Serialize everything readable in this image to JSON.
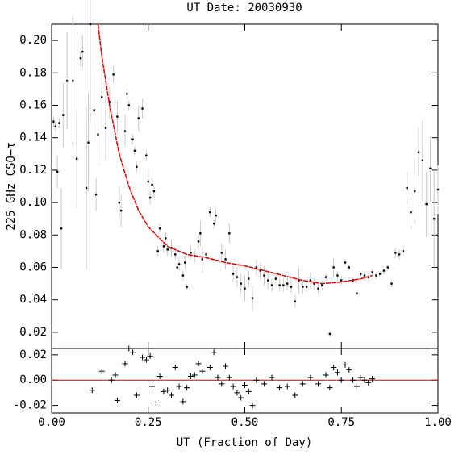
{
  "chart_data": [
    {
      "type": "scatter",
      "title": "UT Date: 20030930",
      "ylabel": "225 GHz CSO−τ",
      "x": [
        0.005,
        0.01,
        0.015,
        0.02,
        0.025,
        0.03,
        0.04,
        0.055,
        0.065,
        0.075,
        0.08,
        0.09,
        0.095,
        0.1,
        0.11,
        0.115,
        0.12,
        0.13,
        0.14,
        0.15,
        0.16,
        0.17,
        0.175,
        0.18,
        0.19,
        0.195,
        0.2,
        0.21,
        0.215,
        0.22,
        0.225,
        0.235,
        0.245,
        0.25,
        0.255,
        0.26,
        0.265,
        0.275,
        0.28,
        0.29,
        0.295,
        0.3,
        0.31,
        0.32,
        0.325,
        0.33,
        0.34,
        0.345,
        0.35,
        0.36,
        0.37,
        0.38,
        0.385,
        0.39,
        0.4,
        0.41,
        0.42,
        0.425,
        0.44,
        0.45,
        0.46,
        0.47,
        0.48,
        0.49,
        0.5,
        0.51,
        0.52,
        0.53,
        0.54,
        0.55,
        0.56,
        0.57,
        0.58,
        0.59,
        0.6,
        0.61,
        0.62,
        0.63,
        0.64,
        0.65,
        0.66,
        0.67,
        0.68,
        0.69,
        0.7,
        0.71,
        0.72,
        0.73,
        0.74,
        0.75,
        0.76,
        0.77,
        0.78,
        0.79,
        0.8,
        0.81,
        0.82,
        0.83,
        0.84,
        0.85,
        0.86,
        0.87,
        0.88,
        0.89,
        0.9,
        0.91,
        0.92,
        0.93,
        0.94,
        0.95,
        0.96,
        0.97,
        0.98,
        0.99,
        1.0
      ],
      "values": [
        0.15,
        0.147,
        0.119,
        0.149,
        0.084,
        0.154,
        0.175,
        0.175,
        0.127,
        0.189,
        0.193,
        0.109,
        0.137,
        0.21,
        0.157,
        0.105,
        0.142,
        0.165,
        0.146,
        0.162,
        0.179,
        0.153,
        0.1,
        0.095,
        0.144,
        0.167,
        0.16,
        0.139,
        0.132,
        0.122,
        0.152,
        0.158,
        0.129,
        0.113,
        0.103,
        0.111,
        0.107,
        0.07,
        0.084,
        0.073,
        0.078,
        0.071,
        0.072,
        0.068,
        0.06,
        0.062,
        0.055,
        0.063,
        0.048,
        0.069,
        0.067,
        0.076,
        0.081,
        0.065,
        0.068,
        0.094,
        0.087,
        0.092,
        0.069,
        0.065,
        0.081,
        0.056,
        0.054,
        0.05,
        0.047,
        0.053,
        0.041,
        0.06,
        0.058,
        0.055,
        0.052,
        0.049,
        0.053,
        0.049,
        0.049,
        0.05,
        0.048,
        0.039,
        0.052,
        0.048,
        0.048,
        0.052,
        0.05,
        0.047,
        0.049,
        0.054,
        0.019,
        0.06,
        0.055,
        0.052,
        0.063,
        0.06,
        0.052,
        0.044,
        0.056,
        0.055,
        0.054,
        0.057,
        0.055,
        0.056,
        0.058,
        0.06,
        0.05,
        0.069,
        0.068,
        0.07,
        0.109,
        0.094,
        0.107,
        0.131,
        0.126,
        0.099,
        0.121,
        0.09,
        0.108
      ],
      "errors": [
        0.003,
        0.003,
        0.01,
        0.003,
        0.025,
        0.02,
        0.03,
        0.04,
        0.03,
        0.005,
        0.01,
        0.05,
        0.03,
        0.06,
        0.02,
        0.01,
        0.02,
        0.02,
        0.02,
        0.01,
        0.005,
        0.01,
        0.01,
        0.01,
        0.01,
        0.003,
        0.003,
        0.003,
        0.003,
        0.003,
        0.008,
        0.006,
        0.003,
        0.008,
        0.004,
        0.004,
        0.004,
        0.003,
        0.003,
        0.004,
        0.004,
        0.004,
        0.005,
        0.003,
        0.006,
        0.004,
        0.003,
        0.004,
        0.002,
        0.004,
        0.004,
        0.005,
        0.008,
        0.008,
        0.004,
        0.003,
        0.003,
        0.004,
        0.006,
        0.006,
        0.006,
        0.005,
        0.006,
        0.006,
        0.008,
        0.005,
        0.008,
        0.005,
        0.005,
        0.006,
        0.006,
        0.004,
        0.004,
        0.004,
        0.004,
        0.004,
        0.004,
        0.004,
        0.008,
        0.004,
        0.003,
        0.005,
        0.004,
        0.003,
        0.003,
        0.002,
        0.002,
        0.006,
        0.003,
        0.003,
        0.002,
        0.002,
        0.002,
        0.002,
        0.002,
        0.003,
        0.002,
        0.002,
        0.002,
        0.002,
        0.002,
        0.002,
        0.002,
        0.003,
        0.003,
        0.003,
        0.01,
        0.01,
        0.02,
        0.015,
        0.025,
        0.02,
        0.02,
        0.03,
        0.015
      ],
      "color": "#000000",
      "error_color": "#c8c8c8",
      "fit": {
        "color": "#e00000",
        "x": [
          0.12,
          0.13,
          0.15,
          0.175,
          0.2,
          0.225,
          0.25,
          0.3,
          0.35,
          0.4,
          0.45,
          0.5,
          0.55,
          0.6,
          0.65,
          0.7,
          0.75,
          0.8,
          0.83
        ],
        "values": [
          0.21,
          0.19,
          0.16,
          0.13,
          0.11,
          0.095,
          0.085,
          0.073,
          0.068,
          0.066,
          0.063,
          0.061,
          0.058,
          0.055,
          0.052,
          0.05,
          0.051,
          0.053,
          0.055
        ]
      },
      "xlim": [
        0,
        1
      ],
      "ylim": [
        0.01,
        0.21
      ],
      "yticks": [
        {
          "value": 0.02,
          "label": "0.02"
        },
        {
          "value": 0.04,
          "label": "0.04"
        },
        {
          "value": 0.06,
          "label": "0.06"
        },
        {
          "value": 0.08,
          "label": "0.08"
        },
        {
          "value": 0.1,
          "label": "0.10"
        },
        {
          "value": 0.12,
          "label": "0.12"
        },
        {
          "value": 0.14,
          "label": "0.14"
        },
        {
          "value": 0.16,
          "label": "0.16"
        },
        {
          "value": 0.18,
          "label": "0.18"
        },
        {
          "value": 0.2,
          "label": "0.20"
        }
      ],
      "xticks": [
        0,
        0.25,
        0.5,
        0.75,
        1
      ]
    },
    {
      "type": "residual",
      "xlabel": "UT (Fraction of Day)",
      "x": [
        0.105,
        0.13,
        0.155,
        0.165,
        0.17,
        0.19,
        0.2,
        0.21,
        0.22,
        0.235,
        0.245,
        0.255,
        0.26,
        0.27,
        0.28,
        0.29,
        0.3,
        0.31,
        0.32,
        0.33,
        0.34,
        0.35,
        0.36,
        0.37,
        0.38,
        0.39,
        0.41,
        0.42,
        0.43,
        0.44,
        0.45,
        0.46,
        0.47,
        0.48,
        0.49,
        0.5,
        0.51,
        0.52,
        0.53,
        0.55,
        0.57,
        0.59,
        0.61,
        0.63,
        0.65,
        0.67,
        0.69,
        0.71,
        0.72,
        0.73,
        0.74,
        0.75,
        0.76,
        0.77,
        0.78,
        0.79,
        0.8,
        0.81,
        0.82,
        0.83
      ],
      "values": [
        -0.008,
        0.007,
        0.0,
        0.004,
        -0.016,
        0.013,
        0.025,
        0.022,
        -0.012,
        0.018,
        0.016,
        0.019,
        -0.005,
        -0.018,
        0.003,
        -0.009,
        -0.008,
        -0.012,
        0.01,
        -0.005,
        -0.017,
        -0.006,
        0.003,
        0.004,
        0.013,
        0.007,
        0.01,
        0.022,
        0.002,
        -0.003,
        0.011,
        0.002,
        -0.005,
        -0.01,
        -0.014,
        -0.004,
        -0.009,
        -0.02,
        0.0,
        -0.003,
        0.002,
        -0.006,
        -0.005,
        -0.012,
        -0.003,
        0.002,
        -0.003,
        0.004,
        -0.006,
        0.01,
        0.006,
        0.0,
        0.012,
        0.008,
        0.0,
        -0.005,
        0.002,
        0.0,
        -0.002,
        0.001
      ],
      "color": "#000000",
      "reference_line": {
        "value": 0,
        "color": "#e00000"
      },
      "xlim": [
        0,
        1
      ],
      "ylim": [
        -0.026,
        0.025
      ],
      "yticks": [
        {
          "value": -0.02,
          "label": "-0.02"
        },
        {
          "value": 0,
          "label": "0.00"
        },
        {
          "value": 0.02,
          "label": "0.02"
        }
      ],
      "xticks": [
        {
          "value": 0,
          "label": "0.00"
        },
        {
          "value": 0.25,
          "label": "0.25"
        },
        {
          "value": 0.5,
          "label": "0.50"
        },
        {
          "value": 0.75,
          "label": "0.75"
        },
        {
          "value": 1,
          "label": "1.00"
        }
      ]
    }
  ]
}
